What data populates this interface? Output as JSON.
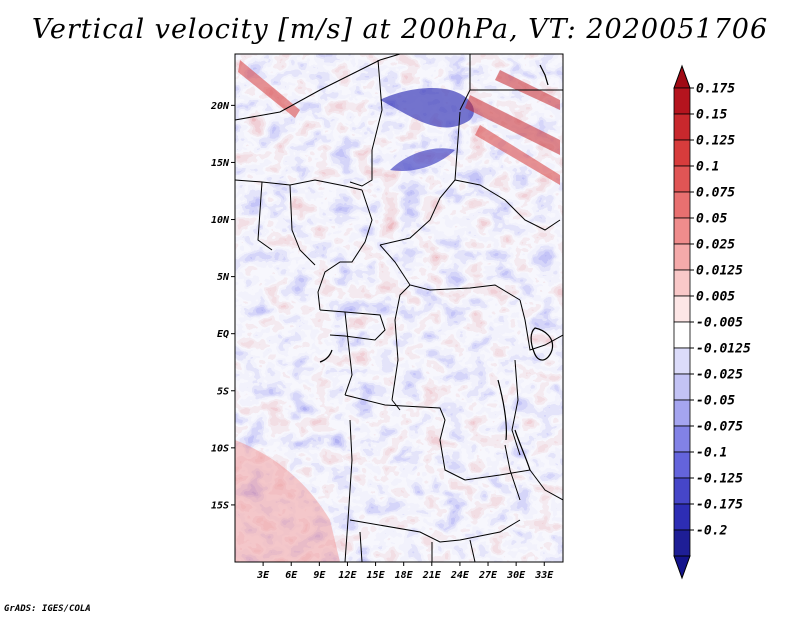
{
  "title": "Vertical velocity [m/s] at 200hPa, VT: 2020051706",
  "credit": "GrADS: IGES/COLA",
  "map": {
    "variable": "Vertical velocity",
    "units": "m/s",
    "level": "200hPa",
    "valid_time": "2020051706",
    "lon_range": [
      0,
      35
    ],
    "lat_range": [
      -20,
      24.5
    ],
    "lat_ticks": [
      {
        "value": 20,
        "label": "20N"
      },
      {
        "value": 15,
        "label": "15N"
      },
      {
        "value": 10,
        "label": "10N"
      },
      {
        "value": 5,
        "label": "5N"
      },
      {
        "value": 0,
        "label": "EQ"
      },
      {
        "value": -5,
        "label": "5S"
      },
      {
        "value": -10,
        "label": "10S"
      },
      {
        "value": -15,
        "label": "15S"
      }
    ],
    "lon_ticks": [
      {
        "value": 3,
        "label": "3E"
      },
      {
        "value": 6,
        "label": "6E"
      },
      {
        "value": 9,
        "label": "9E"
      },
      {
        "value": 12,
        "label": "12E"
      },
      {
        "value": 15,
        "label": "15E"
      },
      {
        "value": 18,
        "label": "18E"
      },
      {
        "value": 21,
        "label": "21E"
      },
      {
        "value": 24,
        "label": "24E"
      },
      {
        "value": 27,
        "label": "27E"
      },
      {
        "value": 30,
        "label": "30E"
      },
      {
        "value": 33,
        "label": "33E"
      }
    ]
  },
  "colorbar": {
    "levels": [
      {
        "label": "0.175",
        "color": "#b4141e"
      },
      {
        "label": "0.15",
        "color": "#c8282d"
      },
      {
        "label": "0.125",
        "color": "#d73c3c"
      },
      {
        "label": "0.1",
        "color": "#e05555"
      },
      {
        "label": "0.075",
        "color": "#e87070"
      },
      {
        "label": "0.05",
        "color": "#ef8c8c"
      },
      {
        "label": "0.025",
        "color": "#f5aaaa"
      },
      {
        "label": "0.0125",
        "color": "#f9c8c8"
      },
      {
        "label": "0.005",
        "color": "#fde6e6"
      },
      {
        "label": "-0.005",
        "color": "#ffffff"
      },
      {
        "label": "-0.0125",
        "color": "#dcdcfa"
      },
      {
        "label": "-0.025",
        "color": "#c3c3f5"
      },
      {
        "label": "-0.05",
        "color": "#a5a5f0"
      },
      {
        "label": "-0.075",
        "color": "#8282e6"
      },
      {
        "label": "-0.1",
        "color": "#6464dc"
      },
      {
        "label": "-0.125",
        "color": "#4646c8"
      },
      {
        "label": "-0.175",
        "color": "#2d2db4"
      },
      {
        "label": "-0.2",
        "color": "#1e1e96"
      }
    ],
    "top_arrow_color": "#a00a14",
    "bottom_arrow_color": "#14148c"
  }
}
